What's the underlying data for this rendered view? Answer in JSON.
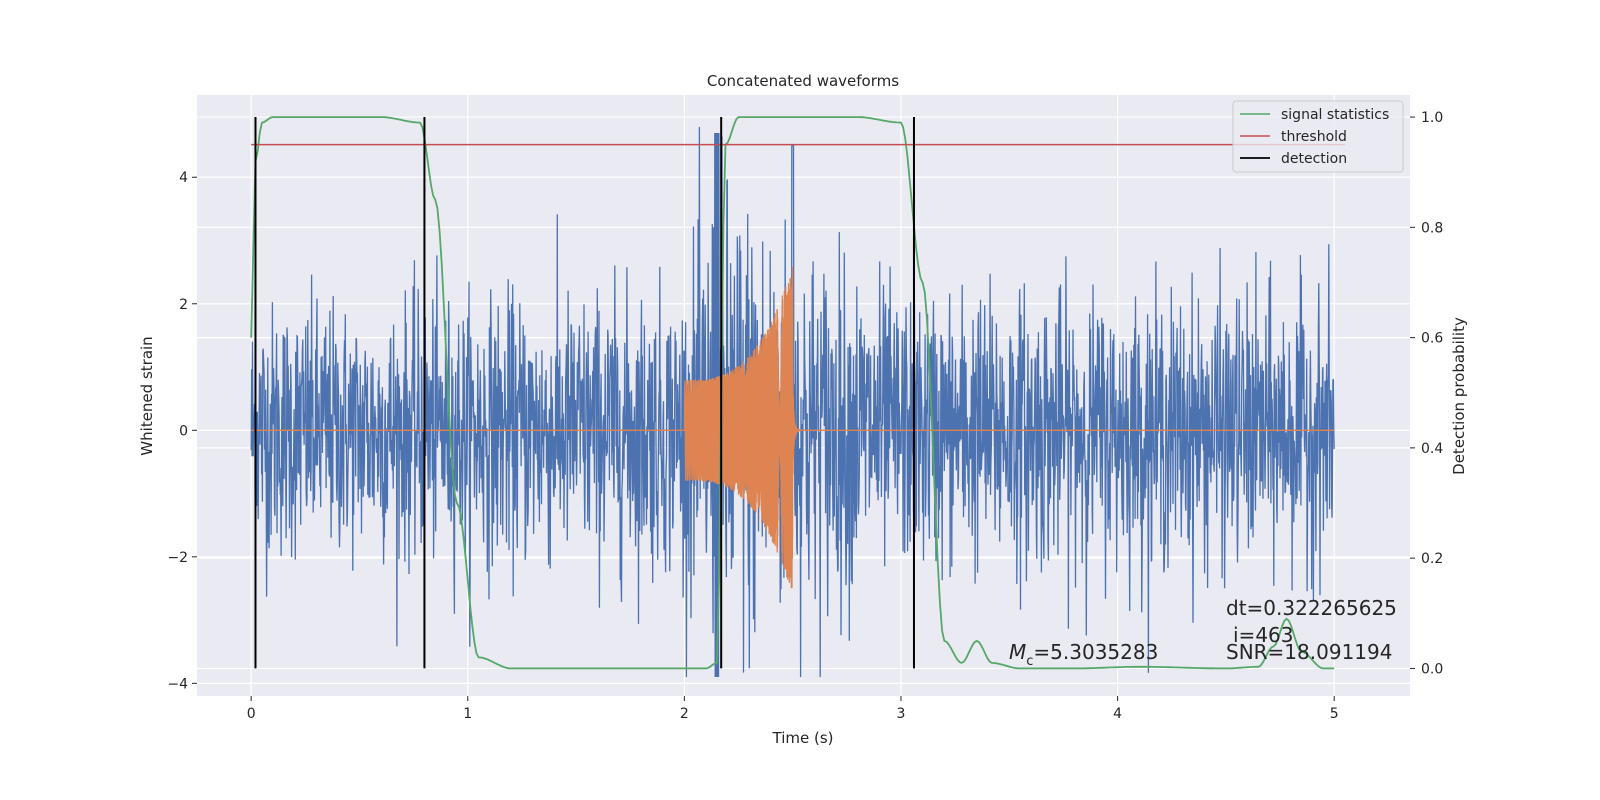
{
  "chart_data": {
    "type": "line",
    "title": "Concatenated waveforms",
    "xlabel": "Time (s)",
    "ylabel": "Whitened strain",
    "ylabel_right": "Detection probability",
    "xlim": [
      -0.25,
      5.35
    ],
    "ylim": [
      -4.2,
      5.3
    ],
    "ylim_right": [
      -0.05,
      1.04
    ],
    "x_ticks": [
      0,
      1,
      2,
      3,
      4,
      5
    ],
    "x_tick_labels": [
      "0",
      "1",
      "2",
      "3",
      "4",
      "5"
    ],
    "y_ticks": [
      -4,
      -2,
      0,
      2,
      4
    ],
    "y_tick_labels": [
      "−4",
      "−2",
      "0",
      "2",
      "4"
    ],
    "y_right_ticks": [
      0.0,
      0.2,
      0.4,
      0.6,
      0.8,
      1.0
    ],
    "y_right_tick_labels": [
      "0.0",
      "0.2",
      "0.4",
      "0.6",
      "0.8",
      "1.0"
    ],
    "grid": true,
    "legend_position": "top-right",
    "colors": {
      "background": "#eaeaf2",
      "grid": "#ffffff",
      "strain": "#4c72b0",
      "template": "#dd8452",
      "signal_statistics": "#55a868",
      "threshold": "#c44e52",
      "detection": "#000000"
    },
    "series": [
      {
        "name": "",
        "role": "strain",
        "x_range": [
          0,
          5
        ],
        "amplitude_envelope": [
          [
            0.0,
            2.4
          ],
          [
            0.5,
            2.3
          ],
          [
            1.0,
            2.4
          ],
          [
            1.5,
            2.5
          ],
          [
            2.0,
            2.6
          ],
          [
            2.15,
            4.8
          ],
          [
            2.5,
            3.6
          ],
          [
            3.0,
            2.5
          ],
          [
            3.5,
            2.6
          ],
          [
            4.0,
            2.4
          ],
          [
            4.5,
            2.5
          ],
          [
            5.0,
            2.4
          ]
        ]
      },
      {
        "name": "",
        "role": "template",
        "chirp_start": 2.0,
        "chirp_end": 2.5,
        "amplitude_start": 0.8,
        "amplitude_peak": 2.6,
        "ringdown_end": 2.55
      },
      {
        "name": "signal statistics",
        "axis": "right",
        "x": [
          0.0,
          0.02,
          0.05,
          0.1,
          0.3,
          0.6,
          0.78,
          0.85,
          0.95,
          1.05,
          1.2,
          1.5,
          1.8,
          2.1,
          2.15,
          2.19,
          2.25,
          2.5,
          2.8,
          3.0,
          3.1,
          3.2,
          3.28,
          3.35,
          3.42,
          3.55,
          3.8,
          4.1,
          4.5,
          4.65,
          4.72,
          4.78,
          4.85,
          4.95,
          5.0
        ],
        "y": [
          0.6,
          0.92,
          0.99,
          1.0,
          1.0,
          1.0,
          0.99,
          0.85,
          0.3,
          0.02,
          0.0,
          0.0,
          0.0,
          0.0,
          0.01,
          0.95,
          1.0,
          1.0,
          1.0,
          0.99,
          0.7,
          0.05,
          0.01,
          0.05,
          0.01,
          0.0,
          0.0,
          0.003,
          0.0,
          0.003,
          0.04,
          0.09,
          0.03,
          0.0,
          0.0
        ]
      },
      {
        "name": "threshold",
        "axis": "right",
        "x": [
          0.0,
          5.05
        ],
        "y": [
          0.95,
          0.95
        ]
      },
      {
        "name": "detection",
        "axis": "right",
        "type": "vertical-lines",
        "x": [
          0.02,
          0.8,
          2.17,
          3.06
        ],
        "ymin": 0.0,
        "ymax": 1.0
      }
    ],
    "annotations": {
      "dt": "dt=0.322265625",
      "i": "i=463",
      "snr": "SNR=18.091194",
      "mc_symbol": "M",
      "mc_subscript": "c",
      "mc_value": "=5.3035283"
    }
  }
}
